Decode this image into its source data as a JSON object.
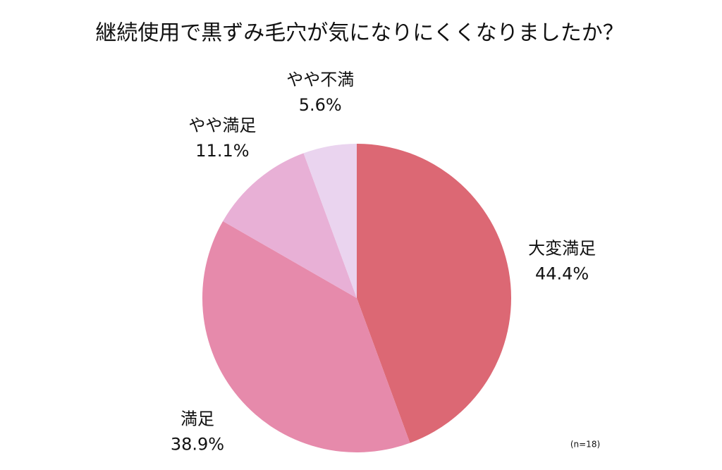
{
  "chart_data": {
    "type": "pie",
    "title": "継続使用で黒ずみ毛穴が気になりにくくなりましたか？",
    "categories": [
      "大変満足",
      "満足",
      "やや満足",
      "やや不満"
    ],
    "values": [
      44.4,
      38.9,
      11.1,
      5.6
    ],
    "value_labels": [
      "44.4%",
      "38.9%",
      "11.1%",
      "5.6%"
    ],
    "colors": [
      "#dc6874",
      "#e68aab",
      "#e8b0d6",
      "#ead4ef"
    ],
    "note": "(n=18)"
  }
}
